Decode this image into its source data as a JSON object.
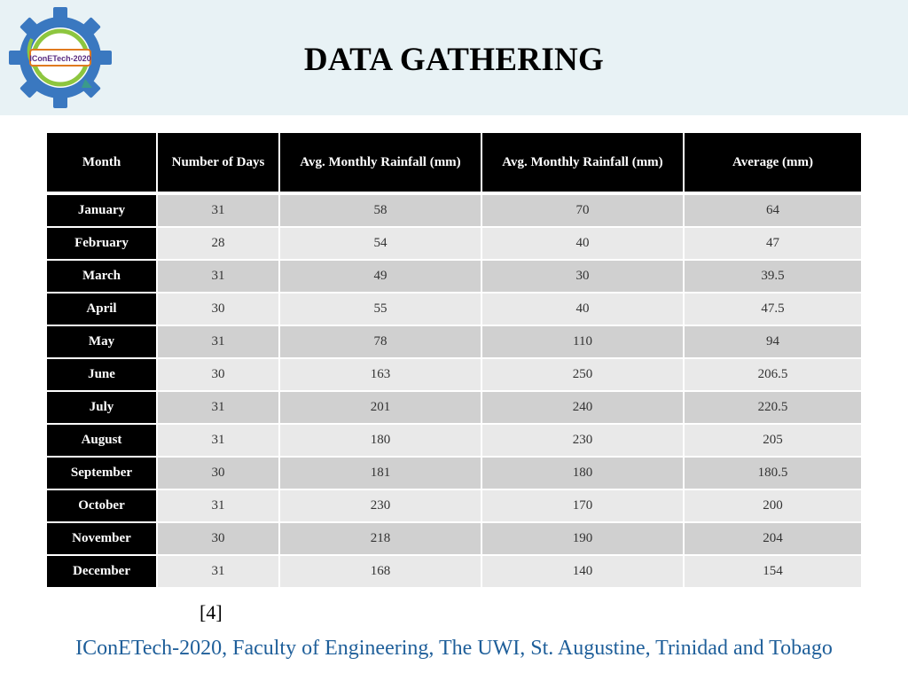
{
  "header": {
    "logo_text": "IConETech-2020",
    "title": "DATA GATHERING"
  },
  "table": {
    "columns": [
      "Month",
      "Number of Days",
      "Avg. Monthly Rainfall (mm)",
      "Avg. Monthly Rainfall (mm)",
      "Average (mm)"
    ],
    "rows": [
      [
        "January",
        "31",
        "58",
        "70",
        "64"
      ],
      [
        "February",
        "28",
        "54",
        "40",
        "47"
      ],
      [
        "March",
        "31",
        "49",
        "30",
        "39.5"
      ],
      [
        "April",
        "30",
        "55",
        "40",
        "47.5"
      ],
      [
        "May",
        "31",
        "78",
        "110",
        "94"
      ],
      [
        "June",
        "30",
        "163",
        "250",
        "206.5"
      ],
      [
        "July",
        "31",
        "201",
        "240",
        "220.5"
      ],
      [
        "August",
        "31",
        "180",
        "230",
        "205"
      ],
      [
        "September",
        "30",
        "181",
        "180",
        "180.5"
      ],
      [
        "October",
        "31",
        "230",
        "170",
        "200"
      ],
      [
        "November",
        "30",
        "218",
        "190",
        "204"
      ],
      [
        "December",
        "31",
        "168",
        "140",
        "154"
      ]
    ]
  },
  "reference": "[4]",
  "footer": "IConETech-2020, Faculty of Engineering, The UWI, St. Augustine, Trinidad and Tobago",
  "colors": {
    "header_bg": "#e8f2f5",
    "footer_text": "#1f5f9a",
    "logo_gear": "#3a78c0",
    "logo_ring": "#8dc63f"
  }
}
